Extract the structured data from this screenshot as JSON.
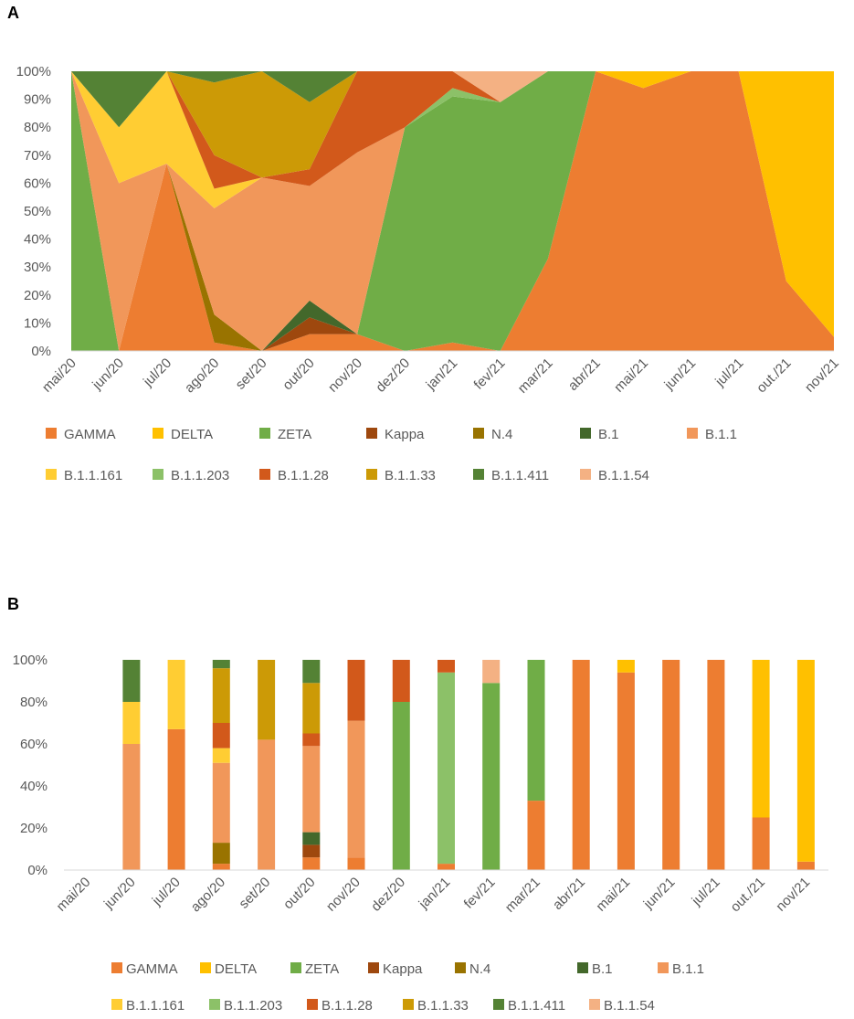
{
  "panels": {
    "a": "A",
    "b": "B"
  },
  "colors": {
    "GAMMA": "#ED7D31",
    "DELTA": "#FFC000",
    "ZETA": "#70AD47",
    "Kappa": "#9E480E",
    "N.4": "#997300",
    "B.1": "#43682B",
    "B.1.1": "#F1975A",
    "B.1.1.161": "#FFCD33",
    "B.1.1.203": "#8CC168",
    "B.1.1.28": "#D2591B",
    "B.1.1.33": "#CC9A06",
    "B.1.1.411": "#548235",
    "B.1.1.54": "#F4B183"
  },
  "chart_data": [
    {
      "panel": "A",
      "type": "area",
      "stacked": "percent",
      "categories": [
        "mai/20",
        "jun/20",
        "jul/20",
        "ago/20",
        "set/20",
        "out/20",
        "nov/20",
        "dez/20",
        "jan/21",
        "fev/21",
        "mar/21",
        "abr/21",
        "mai/21",
        "jun/21",
        "jul/21",
        "out./21",
        "nov/21"
      ],
      "yticks": [
        "0%",
        "10%",
        "20%",
        "30%",
        "40%",
        "50%",
        "60%",
        "70%",
        "80%",
        "90%",
        "100%"
      ],
      "ylim": [
        0,
        100
      ],
      "legend": [
        "GAMMA",
        "DELTA",
        "ZETA",
        "Kappa",
        "N.4",
        "B.1",
        "B.1.1",
        "B.1.1.161",
        "B.1.1.203",
        "B.1.1.28",
        "B.1.1.33",
        "B.1.1.411",
        "B.1.1.54"
      ],
      "legend_position": "bottom",
      "series": [
        {
          "name": "GAMMA",
          "values": [
            0,
            0,
            67,
            3,
            0,
            6,
            6,
            0,
            3,
            0,
            33,
            100,
            94,
            100,
            100,
            25,
            5
          ]
        },
        {
          "name": "DELTA",
          "values": [
            0,
            0,
            0,
            0,
            0,
            0,
            0,
            0,
            0,
            0,
            0,
            0,
            6,
            0,
            0,
            75,
            95
          ]
        },
        {
          "name": "ZETA",
          "values": [
            100,
            0,
            0,
            0,
            0,
            0,
            0,
            80,
            88,
            89,
            67,
            0,
            0,
            0,
            0,
            0,
            0
          ]
        },
        {
          "name": "Kappa",
          "values": [
            0,
            0,
            0,
            0,
            0,
            6,
            0,
            0,
            0,
            0,
            0,
            0,
            0,
            0,
            0,
            0,
            0
          ]
        },
        {
          "name": "N.4",
          "values": [
            0,
            0,
            0,
            10,
            0,
            0,
            0,
            0,
            0,
            0,
            0,
            0,
            0,
            0,
            0,
            0,
            0
          ]
        },
        {
          "name": "B.1",
          "values": [
            0,
            0,
            0,
            0,
            0,
            6,
            0,
            0,
            0,
            0,
            0,
            0,
            0,
            0,
            0,
            0,
            0
          ]
        },
        {
          "name": "B.1.1",
          "values": [
            0,
            60,
            0,
            38,
            62,
            41,
            65,
            0,
            0,
            0,
            0,
            0,
            0,
            0,
            0,
            0,
            0
          ]
        },
        {
          "name": "B.1.1.161",
          "values": [
            0,
            20,
            33,
            7,
            0,
            0,
            0,
            0,
            0,
            0,
            0,
            0,
            0,
            0,
            0,
            0,
            0
          ]
        },
        {
          "name": "B.1.1.203",
          "values": [
            0,
            0,
            0,
            0,
            0,
            0,
            0,
            0,
            3,
            0,
            0,
            0,
            0,
            0,
            0,
            0,
            0
          ]
        },
        {
          "name": "B.1.1.28",
          "values": [
            0,
            0,
            0,
            12,
            0,
            6,
            29,
            20,
            6,
            0,
            0,
            0,
            0,
            0,
            0,
            0,
            0
          ]
        },
        {
          "name": "B.1.1.33",
          "values": [
            0,
            0,
            0,
            26,
            38,
            24,
            0,
            0,
            0,
            0,
            0,
            0,
            0,
            0,
            0,
            0,
            0
          ]
        },
        {
          "name": "B.1.1.411",
          "values": [
            0,
            20,
            0,
            4,
            0,
            11,
            0,
            0,
            0,
            0,
            0,
            0,
            0,
            0,
            0,
            0,
            0
          ]
        },
        {
          "name": "B.1.1.54",
          "values": [
            0,
            0,
            0,
            0,
            0,
            0,
            0,
            0,
            0,
            11,
            0,
            0,
            0,
            0,
            0,
            0,
            0
          ]
        }
      ]
    },
    {
      "panel": "B",
      "type": "bar",
      "stacked": "percent",
      "categories": [
        "mai/20",
        "jun/20",
        "jul/20",
        "ago/20",
        "set/20",
        "out/20",
        "nov/20",
        "dez/20",
        "jan/21",
        "fev/21",
        "mar/21",
        "abr/21",
        "mai/21",
        "jun/21",
        "jul/21",
        "out./21",
        "nov/21"
      ],
      "yticks": [
        "0%",
        "20%",
        "40%",
        "60%",
        "80%",
        "100%"
      ],
      "ylim": [
        0,
        100
      ],
      "legend": [
        "GAMMA",
        "DELTA",
        "ZETA",
        "Kappa",
        "N.4",
        "B.1",
        "B.1.1",
        "B.1.1.161",
        "B.1.1.203",
        "B.1.1.28",
        "B.1.1.33",
        "B.1.1.411",
        "B.1.1.54"
      ],
      "legend_position": "bottom",
      "series": [
        {
          "name": "GAMMA",
          "values": [
            0,
            0,
            67,
            3,
            0,
            6,
            6,
            0,
            3,
            0,
            33,
            100,
            94,
            100,
            100,
            25,
            4
          ]
        },
        {
          "name": "DELTA",
          "values": [
            0,
            0,
            0,
            0,
            0,
            0,
            0,
            0,
            0,
            0,
            0,
            0,
            6,
            0,
            0,
            75,
            96
          ]
        },
        {
          "name": "ZETA",
          "values": [
            0,
            0,
            0,
            0,
            0,
            0,
            0,
            80,
            0,
            89,
            67,
            0,
            0,
            0,
            0,
            0,
            0
          ]
        },
        {
          "name": "Kappa",
          "values": [
            0,
            0,
            0,
            0,
            0,
            6,
            0,
            0,
            0,
            0,
            0,
            0,
            0,
            0,
            0,
            0,
            0
          ]
        },
        {
          "name": "N.4",
          "values": [
            0,
            0,
            0,
            10,
            0,
            0,
            0,
            0,
            0,
            0,
            0,
            0,
            0,
            0,
            0,
            0,
            0
          ]
        },
        {
          "name": "B.1",
          "values": [
            0,
            0,
            0,
            0,
            0,
            6,
            0,
            0,
            0,
            0,
            0,
            0,
            0,
            0,
            0,
            0,
            0
          ]
        },
        {
          "name": "B.1.1",
          "values": [
            0,
            60,
            0,
            38,
            62,
            41,
            65,
            0,
            0,
            0,
            0,
            0,
            0,
            0,
            0,
            0,
            0
          ]
        },
        {
          "name": "B.1.1.161",
          "values": [
            0,
            20,
            33,
            7,
            0,
            0,
            0,
            0,
            0,
            0,
            0,
            0,
            0,
            0,
            0,
            0,
            0
          ]
        },
        {
          "name": "B.1.1.203",
          "values": [
            0,
            0,
            0,
            0,
            0,
            0,
            0,
            0,
            91,
            0,
            0,
            0,
            0,
            0,
            0,
            0,
            0
          ]
        },
        {
          "name": "B.1.1.28",
          "values": [
            0,
            0,
            0,
            12,
            0,
            6,
            29,
            20,
            6,
            0,
            0,
            0,
            0,
            0,
            0,
            0,
            0
          ]
        },
        {
          "name": "B.1.1.33",
          "values": [
            0,
            0,
            0,
            26,
            38,
            24,
            0,
            0,
            0,
            0,
            0,
            0,
            0,
            0,
            0,
            0,
            0
          ]
        },
        {
          "name": "B.1.1.411",
          "values": [
            0,
            20,
            0,
            4,
            0,
            11,
            0,
            0,
            0,
            0,
            0,
            0,
            0,
            0,
            0,
            0,
            0
          ]
        },
        {
          "name": "B.1.1.54",
          "values": [
            0,
            0,
            0,
            0,
            0,
            0,
            0,
            0,
            0,
            11,
            0,
            0,
            0,
            0,
            0,
            0,
            0
          ]
        }
      ]
    }
  ]
}
